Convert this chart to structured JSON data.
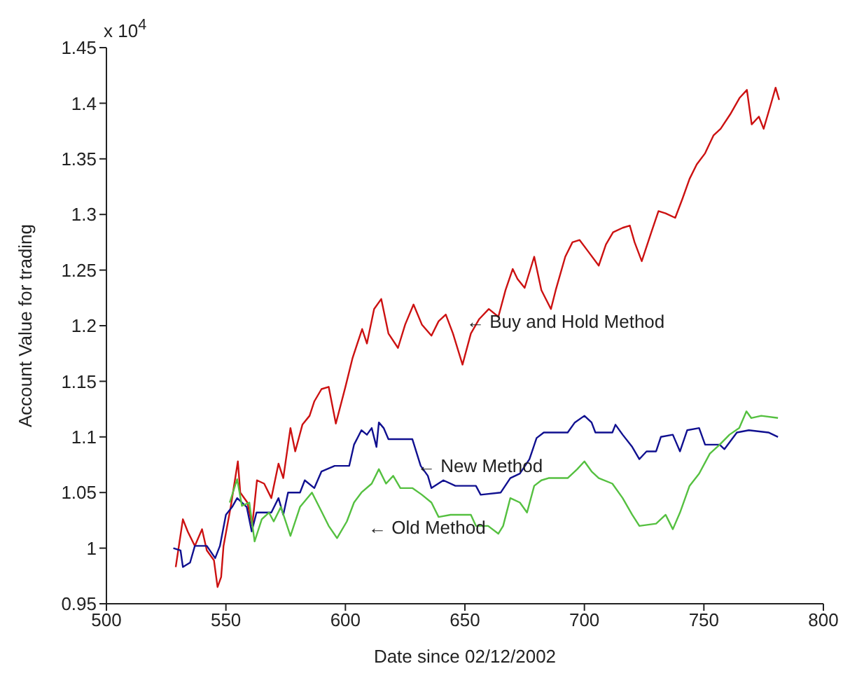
{
  "chart_data": {
    "type": "line",
    "xlabel": "Date since 02/12/2002",
    "ylabel": "Account Value for trading",
    "xlim": [
      500,
      800
    ],
    "xticks": [
      500,
      550,
      600,
      650,
      700,
      750,
      800
    ],
    "ylim": [
      0.95,
      1.45
    ],
    "yticks": [
      0.95,
      1,
      1.05,
      1.1,
      1.15,
      1.2,
      1.25,
      1.3,
      1.35,
      1.4,
      1.45
    ],
    "grid": false,
    "legend": false,
    "marker": "none",
    "line_style": "solid",
    "annotations": [
      "x 10$^{4}$",
      "← Buy and Hold Method",
      "← New Method",
      "← Old Method"
    ],
    "series": [
      {
        "color": "#cc1111",
        "x": [
          529,
          532,
          534,
          537,
          540,
          542,
          545,
          546.5,
          548,
          549,
          552,
          555,
          556,
          559,
          561,
          563,
          566,
          569,
          572,
          574,
          577,
          579,
          582,
          585,
          587,
          590,
          593,
          596,
          600,
          603,
          607,
          609,
          612,
          615,
          618,
          622,
          625,
          628.5,
          632,
          636,
          639,
          642,
          645,
          649,
          652.5,
          656,
          660,
          664,
          667,
          670,
          672,
          675,
          679,
          682,
          686,
          688,
          692,
          695,
          698,
          701.5,
          706,
          709,
          712,
          716,
          719,
          721,
          724,
          728,
          731,
          734,
          738,
          741,
          744,
          747,
          750.5,
          754,
          757,
          761,
          765,
          768,
          770,
          773,
          775,
          778,
          780,
          781.5
        ],
        "values": [
          0.983,
          1.026,
          1.015,
          1.002,
          1.017,
          0.998,
          0.989,
          0.965,
          0.974,
          1.002,
          1.037,
          1.078,
          1.05,
          1.041,
          1.02,
          1.061,
          1.058,
          1.045,
          1.076,
          1.063,
          1.108,
          1.087,
          1.111,
          1.119,
          1.132,
          1.143,
          1.145,
          1.112,
          1.145,
          1.171,
          1.197,
          1.184,
          1.215,
          1.224,
          1.193,
          1.18,
          1.201,
          1.219,
          1.201,
          1.191,
          1.204,
          1.21,
          1.193,
          1.165,
          1.193,
          1.206,
          1.215,
          1.208,
          1.232,
          1.251,
          1.242,
          1.234,
          1.262,
          1.232,
          1.215,
          1.232,
          1.262,
          1.275,
          1.277,
          1.267,
          1.254,
          1.273,
          1.284,
          1.288,
          1.29,
          1.275,
          1.258,
          1.284,
          1.303,
          1.301,
          1.297,
          1.314,
          1.332,
          1.345,
          1.355,
          1.371,
          1.377,
          1.39,
          1.405,
          1.412,
          1.381,
          1.388,
          1.377,
          1.399,
          1.414,
          1.403
        ]
      },
      {
        "color": "#101090",
        "x": [
          528,
          531,
          532,
          535,
          537,
          542,
          545.5,
          547.5,
          550,
          552.6,
          554.7,
          558.7,
          560.8,
          562.8,
          569,
          572,
          574,
          576,
          581,
          583,
          587,
          590,
          595.5,
          601.6,
          603.6,
          606.7,
          609,
          611,
          613,
          614,
          616,
          618,
          628,
          631.5,
          634.5,
          636,
          641,
          646,
          654.6,
          656.6,
          665,
          669,
          673,
          677,
          680,
          683,
          693,
          696,
          700,
          703,
          704.6,
          711.7,
          713,
          716,
          720,
          723,
          726,
          730,
          732,
          737,
          740,
          743,
          748,
          750.5,
          756.6,
          758.6,
          763.8,
          768.8,
          777,
          781
        ],
        "values": [
          1,
          0.998,
          0.983,
          0.987,
          1.002,
          1.002,
          0.991,
          1.002,
          1.03,
          1.037,
          1.045,
          1.037,
          1.015,
          1.032,
          1.032,
          1.045,
          1.03,
          1.05,
          1.05,
          1.061,
          1.054,
          1.069,
          1.074,
          1.074,
          1.093,
          1.106,
          1.102,
          1.108,
          1.091,
          1.113,
          1.108,
          1.098,
          1.098,
          1.074,
          1.065,
          1.054,
          1.061,
          1.056,
          1.056,
          1.048,
          1.05,
          1.063,
          1.067,
          1.08,
          1.099,
          1.104,
          1.104,
          1.113,
          1.119,
          1.113,
          1.104,
          1.104,
          1.111,
          1.102,
          1.091,
          1.08,
          1.087,
          1.087,
          1.1,
          1.102,
          1.087,
          1.106,
          1.108,
          1.093,
          1.093,
          1.089,
          1.104,
          1.106,
          1.104,
          1.1
        ]
      },
      {
        "color": "#55c040",
        "x": [
          551.6,
          554.7,
          556.7,
          559.8,
          562,
          565,
          568,
          570,
          573,
          577,
          581,
          586,
          590,
          593,
          596.5,
          600.6,
          603.6,
          606.7,
          611,
          614,
          617,
          620,
          623,
          628,
          632,
          636,
          639,
          644,
          652.5,
          654.6,
          659.7,
          664,
          666,
          669,
          673,
          676,
          679,
          682,
          685,
          693,
          697,
          700,
          703,
          706,
          711.7,
          716,
          720,
          723,
          730,
          734,
          737,
          740,
          744,
          748,
          752.5,
          756.6,
          760.7,
          764.8,
          767.8,
          769.8,
          774,
          781
        ],
        "values": [
          1.041,
          1.062,
          1.038,
          1.041,
          1.006,
          1.026,
          1.032,
          1.024,
          1.037,
          1.011,
          1.037,
          1.05,
          1.033,
          1.02,
          1.009,
          1.024,
          1.041,
          1.05,
          1.058,
          1.071,
          1.058,
          1.065,
          1.054,
          1.054,
          1.048,
          1.041,
          1.028,
          1.03,
          1.03,
          1.02,
          1.02,
          1.013,
          1.02,
          1.045,
          1.041,
          1.032,
          1.056,
          1.061,
          1.063,
          1.063,
          1.071,
          1.078,
          1.069,
          1.063,
          1.058,
          1.045,
          1.03,
          1.02,
          1.022,
          1.03,
          1.017,
          1.032,
          1.056,
          1.067,
          1.085,
          1.093,
          1.102,
          1.108,
          1.123,
          1.117,
          1.119,
          1.117
        ]
      }
    ]
  }
}
